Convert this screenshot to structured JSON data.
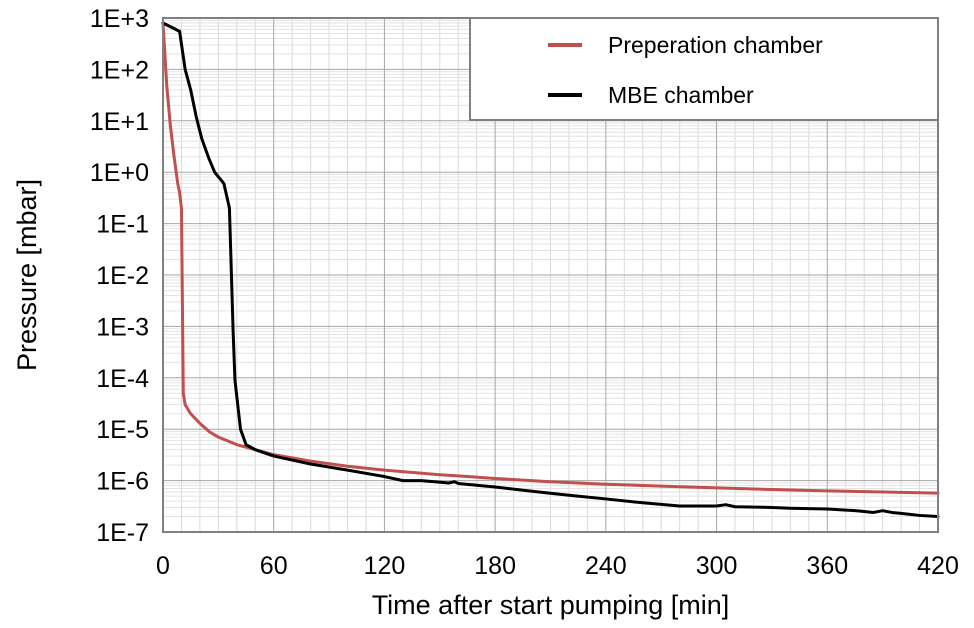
{
  "chart_data": {
    "type": "line",
    "xlabel": "Time after start pumping [min]",
    "ylabel": "Pressure [mbar]",
    "xlim": [
      0,
      420
    ],
    "ylim": [
      1e-07,
      1000
    ],
    "yscale": "log",
    "grid": true,
    "legend_position": "top-right",
    "x_ticks": [
      0,
      60,
      120,
      180,
      240,
      300,
      360,
      420
    ],
    "x_tick_labels": [
      "0",
      "60",
      "120",
      "180",
      "240",
      "300",
      "360",
      "420"
    ],
    "y_ticks": [
      1e-07,
      1e-06,
      1e-05,
      0.0001,
      0.001,
      0.01,
      0.1,
      1,
      10,
      100,
      1000
    ],
    "y_tick_labels": [
      "1E-7",
      "1E-6",
      "1E-5",
      "1E-4",
      "1E-3",
      "1E-2",
      "1E-1",
      "1E+0",
      "1E+1",
      "1E+2",
      "1E+3"
    ],
    "series": [
      {
        "name": "Preperation chamber",
        "color": "#c0504d",
        "points": [
          [
            0,
            800
          ],
          [
            2,
            50
          ],
          [
            4,
            8
          ],
          [
            6,
            2
          ],
          [
            8,
            0.6
          ],
          [
            9,
            0.4
          ],
          [
            10,
            0.2
          ],
          [
            11,
            5e-05
          ],
          [
            12,
            3e-05
          ],
          [
            15,
            2e-05
          ],
          [
            20,
            1.3e-05
          ],
          [
            25,
            9e-06
          ],
          [
            30,
            7e-06
          ],
          [
            40,
            5e-06
          ],
          [
            50,
            4e-06
          ],
          [
            60,
            3.2e-06
          ],
          [
            80,
            2.4e-06
          ],
          [
            100,
            1.9e-06
          ],
          [
            120,
            1.6e-06
          ],
          [
            150,
            1.3e-06
          ],
          [
            165,
            1.2e-06
          ],
          [
            180,
            1.1e-06
          ],
          [
            210,
            9.5e-07
          ],
          [
            240,
            8.5e-07
          ],
          [
            270,
            7.8e-07
          ],
          [
            300,
            7.2e-07
          ],
          [
            330,
            6.7e-07
          ],
          [
            360,
            6.3e-07
          ],
          [
            390,
            6e-07
          ],
          [
            420,
            5.7e-07
          ]
        ]
      },
      {
        "name": "MBE chamber",
        "color": "#000000",
        "points": [
          [
            0,
            800
          ],
          [
            5,
            650
          ],
          [
            9,
            550
          ],
          [
            12,
            100
          ],
          [
            15,
            40
          ],
          [
            18,
            12
          ],
          [
            21,
            4.5
          ],
          [
            25,
            1.8
          ],
          [
            28,
            1.0
          ],
          [
            33,
            0.6
          ],
          [
            36,
            0.2
          ],
          [
            38,
            0.0008
          ],
          [
            39,
            9e-05
          ],
          [
            42,
            1e-05
          ],
          [
            45,
            5e-06
          ],
          [
            50,
            4e-06
          ],
          [
            60,
            3e-06
          ],
          [
            80,
            2.1e-06
          ],
          [
            100,
            1.6e-06
          ],
          [
            120,
            1.2e-06
          ],
          [
            130,
            1e-06
          ],
          [
            140,
            1e-06
          ],
          [
            155,
            9e-07
          ],
          [
            158,
            9.5e-07
          ],
          [
            160,
            8.8e-07
          ],
          [
            180,
            7.5e-07
          ],
          [
            200,
            6.2e-07
          ],
          [
            220,
            5.2e-07
          ],
          [
            240,
            4.4e-07
          ],
          [
            260,
            3.7e-07
          ],
          [
            280,
            3.2e-07
          ],
          [
            300,
            3.2e-07
          ],
          [
            305,
            3.4e-07
          ],
          [
            310,
            3.1e-07
          ],
          [
            330,
            3e-07
          ],
          [
            340,
            2.9e-07
          ],
          [
            360,
            2.8e-07
          ],
          [
            375,
            2.6e-07
          ],
          [
            380,
            2.5e-07
          ],
          [
            385,
            2.4e-07
          ],
          [
            390,
            2.6e-07
          ],
          [
            395,
            2.4e-07
          ],
          [
            400,
            2.3e-07
          ],
          [
            410,
            2.1e-07
          ],
          [
            420,
            2e-07
          ]
        ]
      }
    ]
  }
}
